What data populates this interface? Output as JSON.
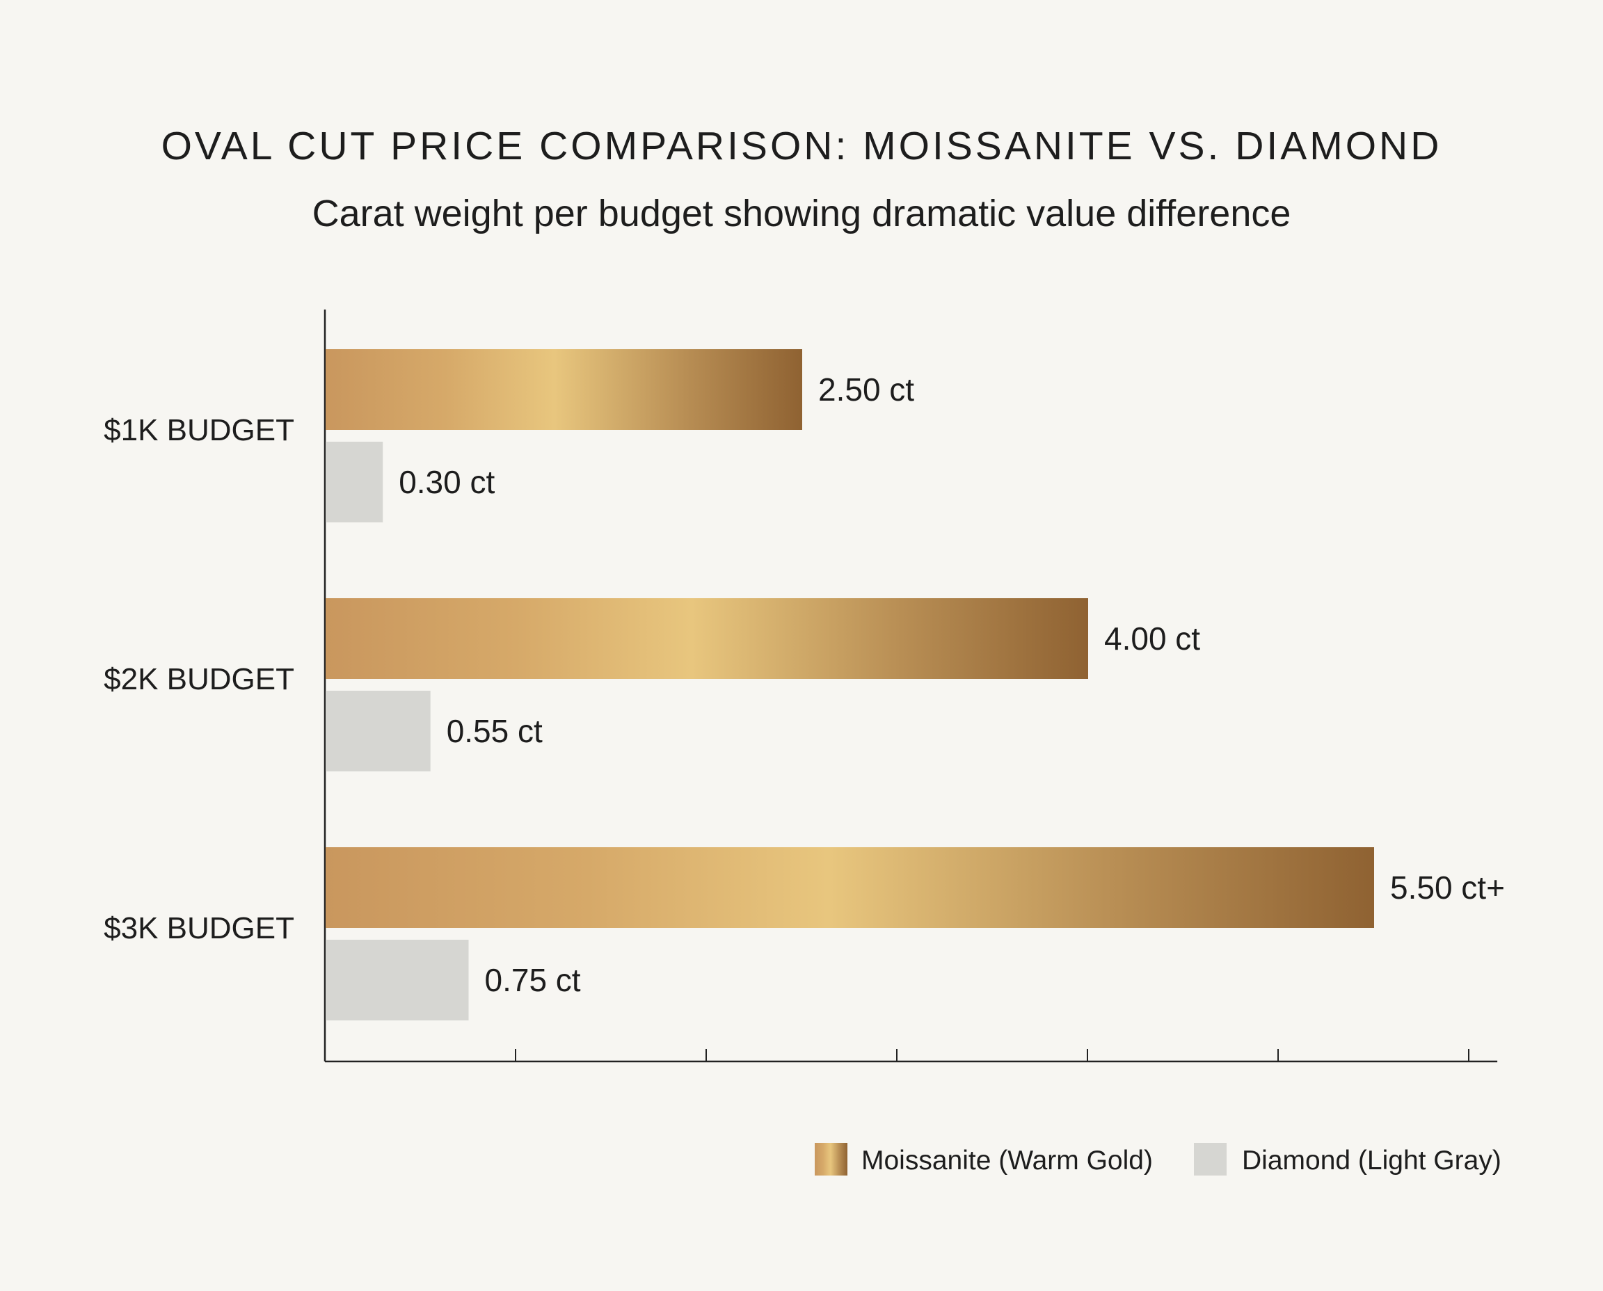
{
  "chart_data": {
    "type": "bar",
    "orientation": "horizontal",
    "title": "OVAL CUT PRICE COMPARISON: MOISSANITE VS. DIAMOND",
    "subtitle": "Carat weight per budget showing dramatic value difference",
    "categories": [
      "$1K BUDGET",
      "$2K BUDGET",
      "$3K BUDGET"
    ],
    "series": [
      {
        "name": "Moissanite (Warm Gold)",
        "values": [
          2.5,
          4.0,
          5.5
        ],
        "labels": [
          "2.50 ct",
          "4.00 ct",
          "5.50 ct+"
        ],
        "color": "#c9975a"
      },
      {
        "name": "Diamond (Light Gray)",
        "values": [
          0.3,
          0.55,
          0.75
        ],
        "labels": [
          "0.30 ct",
          "0.55 ct",
          "0.75 ct"
        ],
        "color": "#d6d6d2"
      }
    ],
    "xlim": [
      0,
      6.15
    ],
    "xticks": [
      1,
      2,
      3,
      4,
      5,
      6
    ],
    "xtick_labels_shown": false,
    "grid": false,
    "legend_position": "bottom-right",
    "gold_gradient": [
      "#c9975e",
      "#d8ad6a",
      "#e8c67e",
      "#c39a5c",
      "#8f6232"
    ]
  }
}
